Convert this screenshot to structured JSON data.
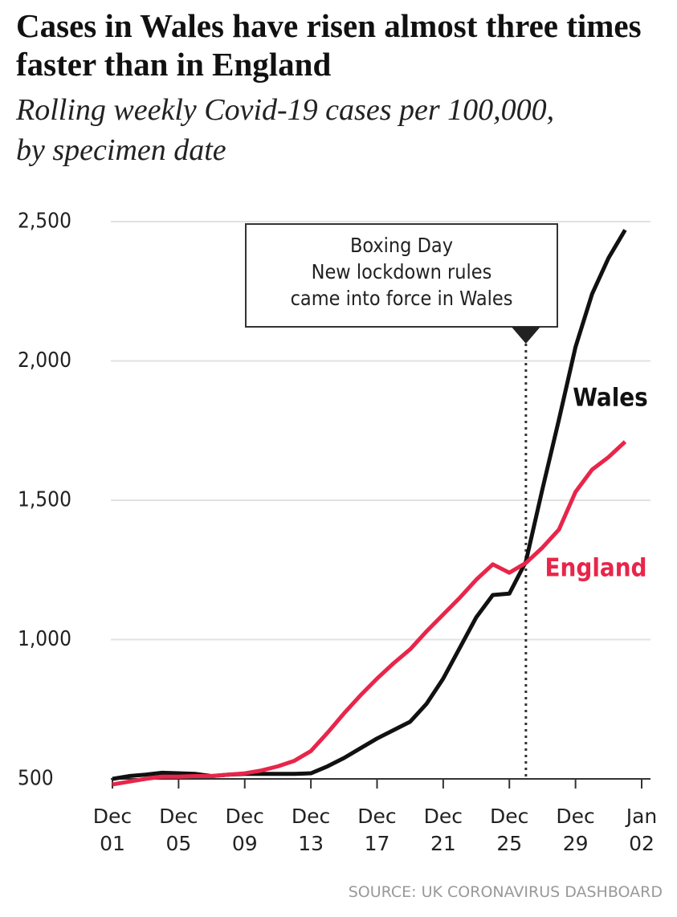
{
  "chart_data": {
    "type": "line",
    "title": "Cases in Wales have risen almost three times faster than in England",
    "subtitle": "Rolling weekly Covid-19 cases per 100,000, by specimen date",
    "source": "SOURCE: UK CORONAVIRUS DASHBOARD",
    "x": [
      1,
      2,
      3,
      4,
      5,
      6,
      7,
      8,
      9,
      10,
      11,
      12,
      13,
      14,
      15,
      16,
      17,
      18,
      19,
      20,
      21,
      22,
      23,
      24,
      25,
      26,
      27,
      28,
      29,
      30,
      31,
      32
    ],
    "series": [
      {
        "name": "Wales",
        "color": "#111111",
        "values": [
          500,
          510,
          515,
          522,
          520,
          518,
          510,
          515,
          518,
          518,
          518,
          518,
          520,
          545,
          575,
          610,
          645,
          675,
          705,
          770,
          860,
          970,
          1080,
          1160,
          1165,
          1280,
          1540,
          1790,
          2050,
          2240,
          2370,
          2470
        ]
      },
      {
        "name": "England",
        "color": "#e8254a",
        "values": [
          480,
          490,
          500,
          508,
          508,
          510,
          510,
          515,
          520,
          530,
          545,
          565,
          600,
          665,
          735,
          800,
          860,
          915,
          965,
          1030,
          1090,
          1150,
          1215,
          1270,
          1240,
          1275,
          1330,
          1395,
          1530,
          1610,
          1655,
          1710
        ]
      }
    ],
    "xlim": [
      1,
      33
    ],
    "xticks": [
      {
        "value": 1,
        "label": "Dec 01"
      },
      {
        "value": 5,
        "label": "Dec 05"
      },
      {
        "value": 9,
        "label": "Dec 09"
      },
      {
        "value": 13,
        "label": "Dec 13"
      },
      {
        "value": 17,
        "label": "Dec 17"
      },
      {
        "value": 21,
        "label": "Dec 21"
      },
      {
        "value": 25,
        "label": "Dec 25"
      },
      {
        "value": 29,
        "label": "Dec 29"
      },
      {
        "value": 33,
        "label": "Jan 02"
      }
    ],
    "ylim": [
      500,
      2500
    ],
    "yticks": [
      500,
      {
        "value": 1000,
        "label": "1,000"
      },
      {
        "value": 1500,
        "label": "1,500"
      },
      {
        "value": 2000,
        "label": "2,000"
      },
      {
        "value": 2500,
        "label": "2,500"
      }
    ],
    "grid": true,
    "annotation": {
      "x": 26,
      "lines": [
        "Boxing Day",
        "New lockdown rules",
        "came into force in Wales"
      ]
    }
  }
}
